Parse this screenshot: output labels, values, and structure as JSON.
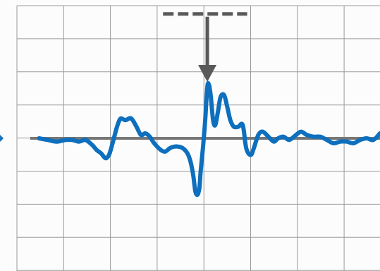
{
  "chart_data": {
    "type": "line",
    "title": "",
    "xlabel": "",
    "ylabel": "",
    "grid": true,
    "grid_color": "#9a9a9a",
    "background_color": "#fcfcfc",
    "xlim": [
      -4.3,
      3.9
    ],
    "ylim": [
      -4,
      4
    ],
    "baseline": {
      "y": 0,
      "color": "#777777"
    },
    "marker": {
      "x": 0,
      "color": "#595959"
    },
    "reference_segment": {
      "x_start": -1.0,
      "x_end": 0.9,
      "y": 3.75,
      "color": "#595959",
      "style": "dashed"
    },
    "side_pointer": {
      "y": 0,
      "color": "#1a73b8"
    },
    "series": [
      {
        "color": "#0d6fbd",
        "x": [
          -3.8,
          -3.6,
          -3.4,
          -3.2,
          -3.05,
          -2.9,
          -2.75,
          -2.6,
          -2.5,
          -2.4,
          -2.3,
          -2.22,
          -2.15,
          -2.05,
          -2.0,
          -1.95,
          -1.85,
          -1.72,
          -1.6,
          -1.5,
          -1.4,
          -1.3,
          -1.2,
          -1.05,
          -0.95,
          -0.85,
          -0.75,
          -0.65,
          -0.55,
          -0.45,
          -0.38,
          -0.32,
          -0.27,
          -0.22,
          -0.18,
          -0.15,
          -0.1,
          -0.05,
          0.0,
          0.04,
          0.08,
          0.13,
          0.18,
          0.24,
          0.3,
          0.38,
          0.45,
          0.52,
          0.6,
          0.7,
          0.8,
          0.88,
          0.98,
          1.05,
          1.15,
          1.25,
          1.38,
          1.5,
          1.6,
          1.72,
          1.85,
          2.0,
          2.12,
          2.25,
          2.4,
          2.55,
          2.7,
          2.85,
          3.0,
          3.15,
          3.3,
          3.45,
          3.6,
          3.75,
          3.9
        ],
        "y": [
          0,
          -0.05,
          -0.1,
          -0.05,
          -0.05,
          -0.1,
          -0.05,
          -0.2,
          -0.35,
          -0.45,
          -0.6,
          -0.5,
          -0.2,
          0.3,
          0.5,
          0.6,
          0.55,
          0.6,
          0.35,
          0.1,
          0.15,
          0.05,
          -0.15,
          -0.35,
          -0.4,
          -0.3,
          -0.25,
          -0.25,
          -0.3,
          -0.45,
          -0.7,
          -1.1,
          -1.6,
          -1.7,
          -1.5,
          -1.0,
          -0.3,
          0.5,
          1.55,
          1.6,
          1.25,
          0.55,
          0.4,
          0.8,
          1.25,
          1.3,
          0.95,
          0.55,
          0.35,
          0.35,
          0.4,
          -0.3,
          -0.5,
          -0.3,
          0.1,
          0.2,
          0.05,
          -0.1,
          0,
          0.05,
          -0.05,
          0.1,
          0.2,
          0.1,
          0.05,
          0.05,
          -0.05,
          -0.15,
          -0.1,
          -0.1,
          -0.15,
          -0.05,
          0,
          -0.05,
          0.15
        ]
      }
    ]
  }
}
